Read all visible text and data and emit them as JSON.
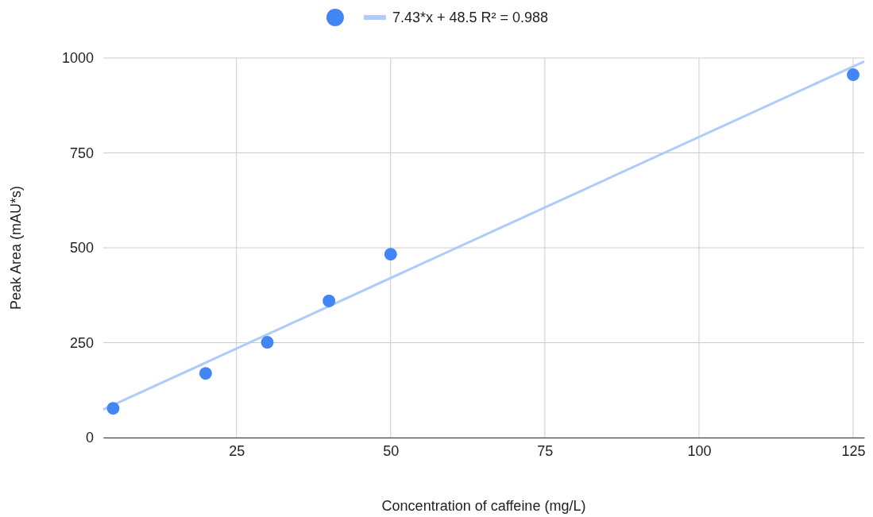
{
  "chart_data": {
    "type": "scatter",
    "xlabel": "Concentration of caffeine (mg/L)",
    "ylabel": "Peak Area (mAU*s)",
    "xlim": [
      3.4,
      126.8
    ],
    "xticks": [
      25,
      50,
      75,
      100,
      125
    ],
    "ylim": [
      0,
      1000
    ],
    "yticks": [
      0,
      250,
      500,
      750,
      1000
    ],
    "grid": true,
    "legend": "top",
    "series": [
      {
        "marker": "circle",
        "color": "#4285f4",
        "x": [
          5,
          20,
          30,
          40,
          50,
          125
        ],
        "values": [
          77,
          169,
          251,
          360,
          483,
          956
        ]
      },
      {
        "type": "line",
        "name": "7.43*x + 48.5 R² = 0.988",
        "color": "#aecbfa",
        "x": [
          3.4,
          126.8
        ],
        "values": [
          74,
          991
        ]
      }
    ]
  }
}
